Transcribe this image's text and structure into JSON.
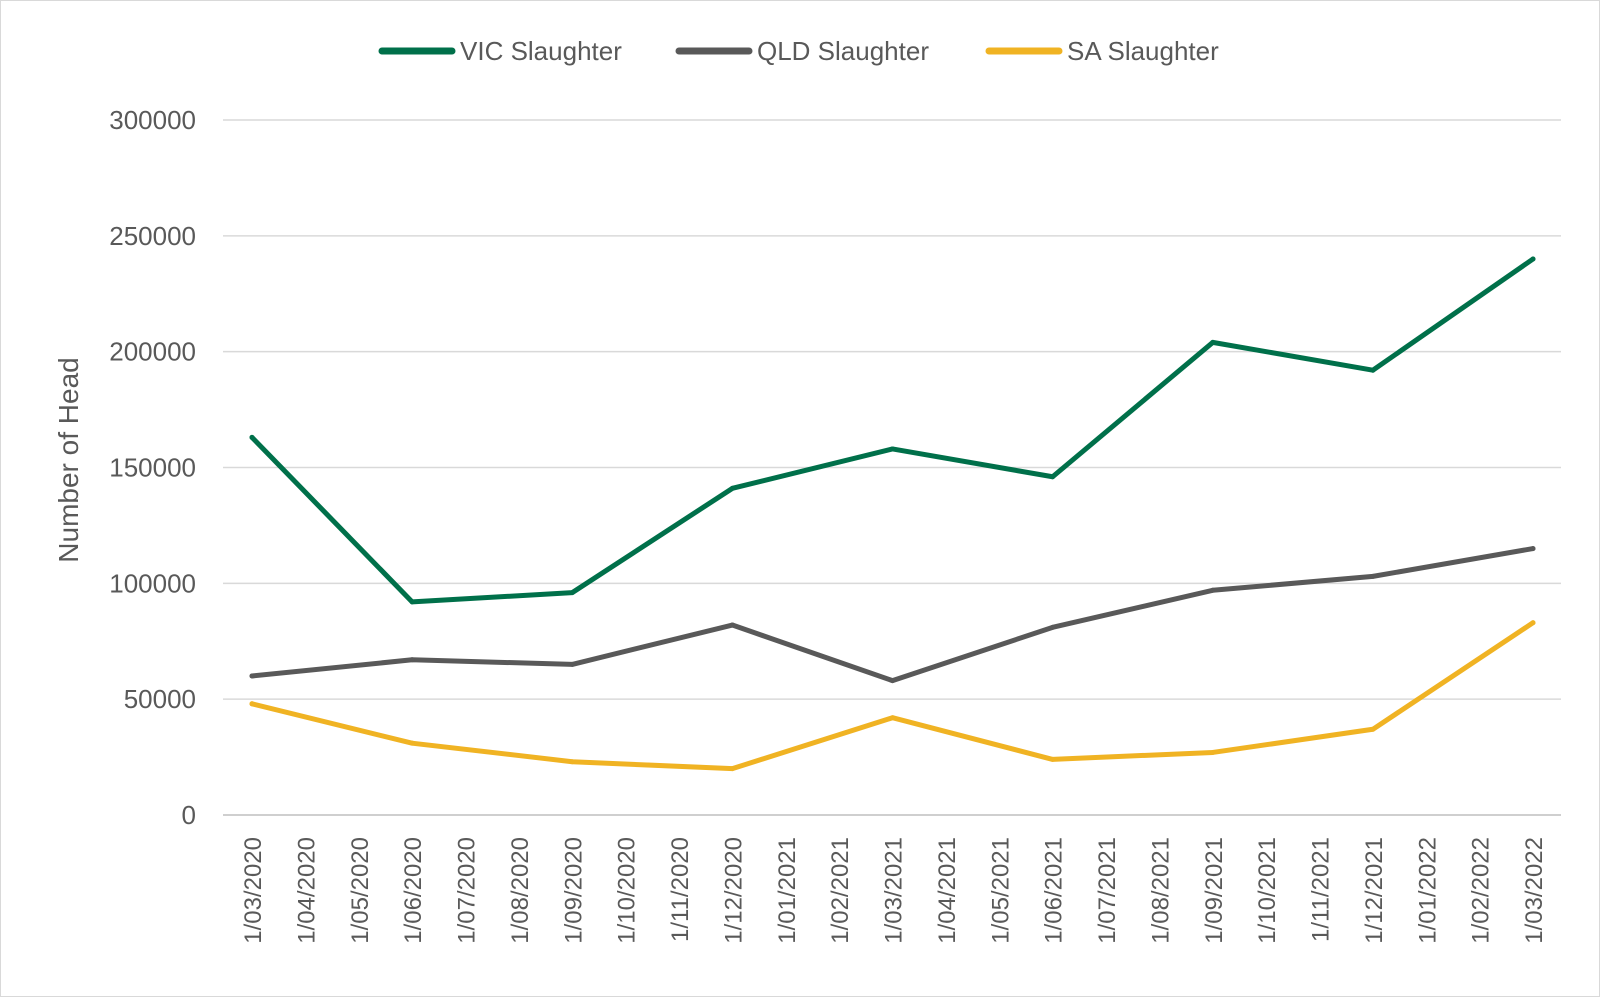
{
  "chart_data": {
    "type": "line",
    "title": "",
    "xlabel": "",
    "ylabel": "Number of Head",
    "ylim": [
      0,
      300000
    ],
    "yticks": [
      "0",
      "50000",
      "100000",
      "150000",
      "200000",
      "250000",
      "300000"
    ],
    "ytick_values": [
      0,
      50000,
      100000,
      150000,
      200000,
      250000,
      300000
    ],
    "grid": "horizontal",
    "legend_position": "top-center",
    "categories": [
      "1/03/2020",
      "1/04/2020",
      "1/05/2020",
      "1/06/2020",
      "1/07/2020",
      "1/08/2020",
      "1/09/2020",
      "1/10/2020",
      "1/11/2020",
      "1/12/2020",
      "1/01/2021",
      "1/02/2021",
      "1/03/2021",
      "1/04/2021",
      "1/05/2021",
      "1/06/2021",
      "1/07/2021",
      "1/08/2021",
      "1/09/2021",
      "1/10/2021",
      "1/11/2021",
      "1/12/2021",
      "1/01/2022",
      "1/02/2022",
      "1/03/2022"
    ],
    "series": [
      {
        "name": "VIC Slaughter",
        "color": "#00704a",
        "points": [
          {
            "x": "1/03/2020",
            "y": 163000
          },
          {
            "x": "1/06/2020",
            "y": 92000
          },
          {
            "x": "1/09/2020",
            "y": 96000
          },
          {
            "x": "1/12/2020",
            "y": 141000
          },
          {
            "x": "1/03/2021",
            "y": 158000
          },
          {
            "x": "1/06/2021",
            "y": 146000
          },
          {
            "x": "1/09/2021",
            "y": 204000
          },
          {
            "x": "1/12/2021",
            "y": 192000
          },
          {
            "x": "1/03/2022",
            "y": 240000
          }
        ]
      },
      {
        "name": "QLD Slaughter",
        "color": "#595959",
        "points": [
          {
            "x": "1/03/2020",
            "y": 60000
          },
          {
            "x": "1/06/2020",
            "y": 67000
          },
          {
            "x": "1/09/2020",
            "y": 65000
          },
          {
            "x": "1/12/2020",
            "y": 82000
          },
          {
            "x": "1/03/2021",
            "y": 58000
          },
          {
            "x": "1/06/2021",
            "y": 81000
          },
          {
            "x": "1/09/2021",
            "y": 97000
          },
          {
            "x": "1/12/2021",
            "y": 103000
          },
          {
            "x": "1/03/2022",
            "y": 115000
          }
        ]
      },
      {
        "name": "SA Slaughter",
        "color": "#f0b323",
        "points": [
          {
            "x": "1/03/2020",
            "y": 48000
          },
          {
            "x": "1/06/2020",
            "y": 31000
          },
          {
            "x": "1/09/2020",
            "y": 23000
          },
          {
            "x": "1/12/2020",
            "y": 20000
          },
          {
            "x": "1/03/2021",
            "y": 42000
          },
          {
            "x": "1/06/2021",
            "y": 24000
          },
          {
            "x": "1/09/2021",
            "y": 27000
          },
          {
            "x": "1/12/2021",
            "y": 37000
          },
          {
            "x": "1/03/2022",
            "y": 83000
          }
        ]
      }
    ]
  }
}
